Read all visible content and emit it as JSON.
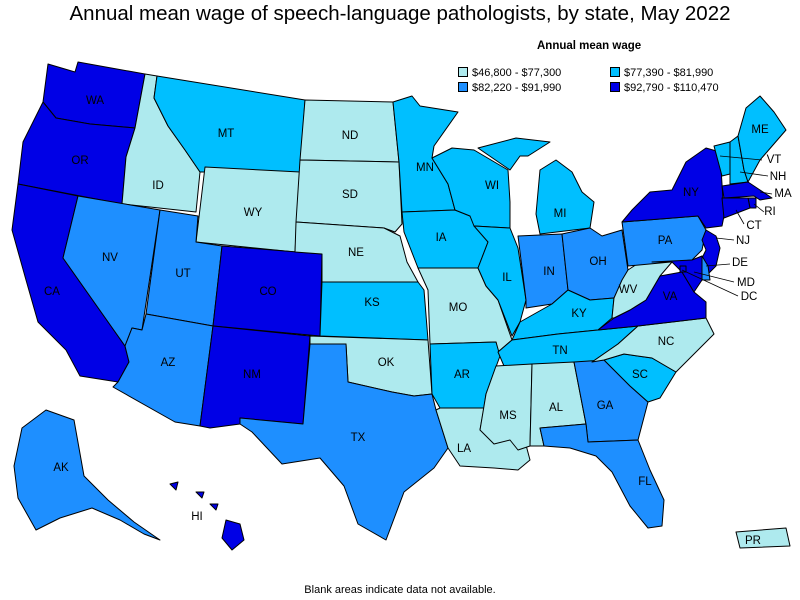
{
  "title": "Annual mean wage of speech-language pathologists, by state, May 2022",
  "legend": {
    "title": "Annual mean wage",
    "bins": [
      {
        "label": "$46,800 - $77,300",
        "color": "#aeeaee"
      },
      {
        "label": "$77,390 - $81,990",
        "color": "#00bfff"
      },
      {
        "label": "$82,220 - $91,990",
        "color": "#1e8fff"
      },
      {
        "label": "$92,790 - $110,470",
        "color": "#0000e6"
      }
    ]
  },
  "states": {
    "WA": {
      "label": "WA",
      "bin": 3
    },
    "OR": {
      "label": "OR",
      "bin": 3
    },
    "CA": {
      "label": "CA",
      "bin": 3
    },
    "ID": {
      "label": "ID",
      "bin": 0
    },
    "NV": {
      "label": "NV",
      "bin": 2
    },
    "MT": {
      "label": "MT",
      "bin": 1
    },
    "WY": {
      "label": "WY",
      "bin": 0
    },
    "UT": {
      "label": "UT",
      "bin": 2
    },
    "AZ": {
      "label": "AZ",
      "bin": 2
    },
    "CO": {
      "label": "CO",
      "bin": 3
    },
    "NM": {
      "label": "NM",
      "bin": 3
    },
    "ND": {
      "label": "ND",
      "bin": 0
    },
    "SD": {
      "label": "SD",
      "bin": 0
    },
    "NE": {
      "label": "NE",
      "bin": 0
    },
    "KS": {
      "label": "KS",
      "bin": 1
    },
    "OK": {
      "label": "OK",
      "bin": 0
    },
    "TX": {
      "label": "TX",
      "bin": 2
    },
    "MN": {
      "label": "MN",
      "bin": 1
    },
    "IA": {
      "label": "IA",
      "bin": 1
    },
    "MO": {
      "label": "MO",
      "bin": 0
    },
    "AR": {
      "label": "AR",
      "bin": 1
    },
    "LA": {
      "label": "LA",
      "bin": 0
    },
    "WI": {
      "label": "WI",
      "bin": 1
    },
    "IL": {
      "label": "IL",
      "bin": 1
    },
    "MI": {
      "label": "MI",
      "bin": 1
    },
    "IN": {
      "label": "IN",
      "bin": 2
    },
    "OH": {
      "label": "OH",
      "bin": 2
    },
    "KY": {
      "label": "KY",
      "bin": 1
    },
    "TN": {
      "label": "TN",
      "bin": 1
    },
    "MS": {
      "label": "MS",
      "bin": 0
    },
    "AL": {
      "label": "AL",
      "bin": 0
    },
    "GA": {
      "label": "GA",
      "bin": 2
    },
    "FL": {
      "label": "FL",
      "bin": 2
    },
    "SC": {
      "label": "SC",
      "bin": 1
    },
    "NC": {
      "label": "NC",
      "bin": 0
    },
    "VA": {
      "label": "VA",
      "bin": 3
    },
    "WV": {
      "label": "WV",
      "bin": 0
    },
    "PA": {
      "label": "PA",
      "bin": 2
    },
    "NY": {
      "label": "NY",
      "bin": 3
    },
    "VT": {
      "label": "VT",
      "bin": 1
    },
    "NH": {
      "label": "NH",
      "bin": 1
    },
    "ME": {
      "label": "ME",
      "bin": 1
    },
    "MA": {
      "label": "MA",
      "bin": 3
    },
    "RI": {
      "label": "RI",
      "bin": 3
    },
    "CT": {
      "label": "CT",
      "bin": 3
    },
    "NJ": {
      "label": "NJ",
      "bin": 3
    },
    "DE": {
      "label": "DE",
      "bin": 2
    },
    "MD": {
      "label": "MD",
      "bin": 3
    },
    "DC": {
      "label": "DC",
      "bin": 3
    },
    "AK": {
      "label": "AK",
      "bin": 2
    },
    "HI": {
      "label": "HI",
      "bin": 3
    },
    "PR": {
      "label": "PR",
      "bin": 0
    }
  },
  "footnote": "Blank areas indicate data not available."
}
